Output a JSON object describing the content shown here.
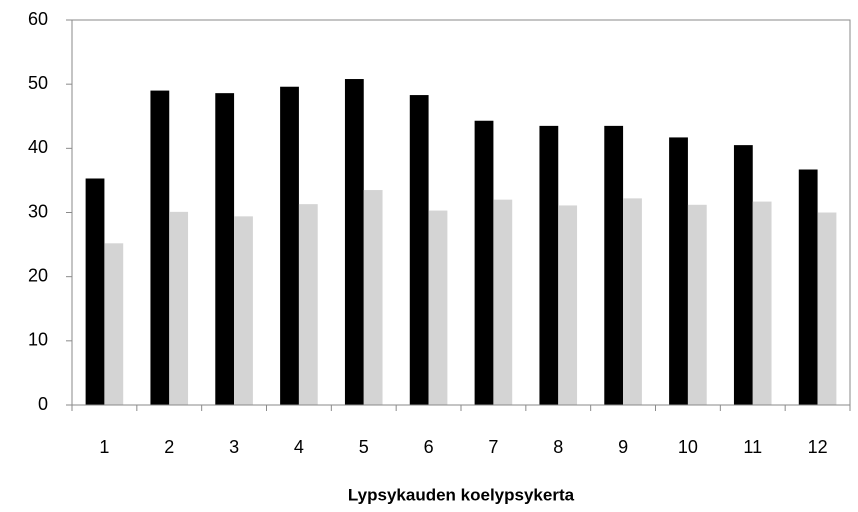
{
  "chart_data": {
    "type": "bar",
    "x_label": "Lypsykauden koelypsykerta",
    "categories": [
      "1",
      "2",
      "3",
      "4",
      "5",
      "6",
      "7",
      "8",
      "9",
      "10",
      "11",
      "12"
    ],
    "series": [
      {
        "color": "#000000",
        "values": [
          35.3,
          49,
          48.6,
          49.6,
          50.8,
          48.3,
          44.3,
          43.5,
          43.5,
          41.7,
          40.5,
          36.7
        ]
      },
      {
        "color": "#d4d4d4",
        "values": [
          25.2,
          30.1,
          29.4,
          31.3,
          33.5,
          30.3,
          32,
          31.1,
          32.2,
          31.2,
          31.7,
          30
        ]
      }
    ],
    "ylim": [
      0,
      60
    ],
    "yticks": [
      0,
      10,
      20,
      30,
      40,
      50,
      60
    ],
    "grid": false
  }
}
